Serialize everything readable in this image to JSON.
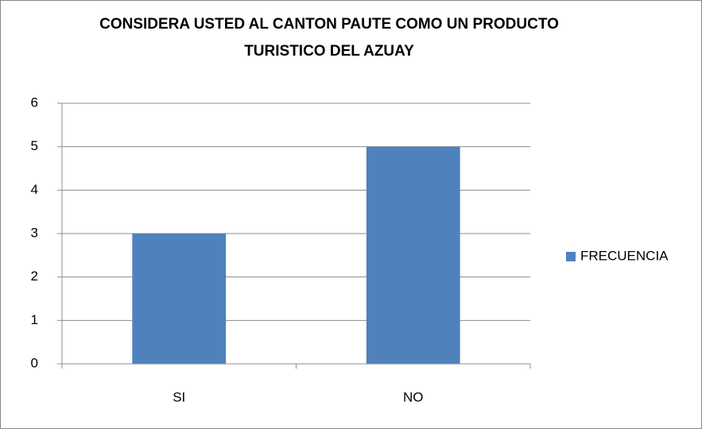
{
  "chart_data": {
    "type": "bar",
    "title": "CONSIDERA USTED AL CANTON PAUTE COMO UN PRODUCTO TURISTICO DEL AZUAY",
    "categories": [
      "SI",
      "NO"
    ],
    "series": [
      {
        "name": "FRECUENCIA",
        "color": "#4f81bd",
        "values": [
          3,
          5
        ]
      }
    ],
    "ylim": [
      0,
      6
    ],
    "yticks": [
      0,
      1,
      2,
      3,
      4,
      5,
      6
    ],
    "grid": true,
    "legend": "right"
  }
}
